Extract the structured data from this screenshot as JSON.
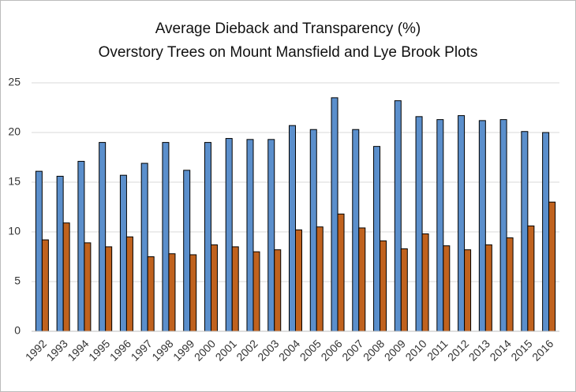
{
  "chart_data": {
    "type": "bar",
    "title": "Average Dieback and Transparency (%)",
    "subtitle": "Overstory Trees on Mount Mansfield and Lye Brook Plots",
    "categories": [
      "1992",
      "1993",
      "1994",
      "1995",
      "1996",
      "1997",
      "1998",
      "1999",
      "2000",
      "2001",
      "2002",
      "2003",
      "2004",
      "2005",
      "2006",
      "2007",
      "2008",
      "2009",
      "2010",
      "2011",
      "2012",
      "2013",
      "2014",
      "2015",
      "2016"
    ],
    "series": [
      {
        "color": "#5b8fcc",
        "values": [
          16.1,
          15.6,
          17.1,
          19.0,
          15.7,
          16.9,
          19.0,
          16.2,
          19.0,
          19.4,
          19.3,
          19.3,
          20.7,
          20.3,
          23.5,
          20.3,
          18.6,
          23.2,
          21.6,
          21.3,
          21.7,
          21.2,
          21.3,
          20.1,
          20.0
        ]
      },
      {
        "color": "#c0621e",
        "values": [
          9.2,
          10.9,
          8.9,
          8.5,
          9.5,
          7.5,
          7.8,
          7.7,
          8.7,
          8.5,
          8.0,
          8.2,
          10.2,
          10.5,
          11.8,
          10.4,
          9.1,
          8.3,
          9.8,
          8.6,
          8.2,
          8.7,
          9.4,
          10.6,
          13.0
        ]
      }
    ],
    "ylim": [
      0,
      25
    ],
    "yticks": [
      0,
      5,
      10,
      15,
      20,
      25
    ],
    "grid": true
  }
}
